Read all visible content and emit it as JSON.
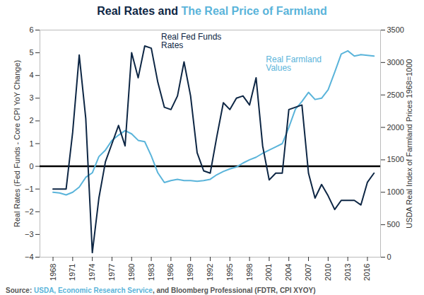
{
  "chart_data": {
    "type": "line",
    "title": [
      "Real Rates and",
      "The Real Price of Farmland"
    ],
    "source": [
      "Source: ",
      "USDA, Economic Research Service",
      ", and Bloomberg Professional (FDTR, CPI XYOY)"
    ],
    "y_label": "Real Rates (Fed Funds - Core CPI YoY Change)",
    "y2_label": "USDA Real Index of Farmland Prices 1968=1000",
    "x": [
      1968,
      1969,
      1970,
      1971,
      1972,
      1973,
      1974,
      1975,
      1976,
      1977,
      1978,
      1979,
      1980,
      1981,
      1982,
      1983,
      1984,
      1985,
      1986,
      1987,
      1988,
      1989,
      1990,
      1991,
      1992,
      1993,
      1994,
      1995,
      1996,
      1997,
      1998,
      1999,
      2000,
      2001,
      2002,
      2003,
      2004,
      2005,
      2006,
      2007,
      2008,
      2009,
      2010,
      2011,
      2012,
      2013,
      2014,
      2015,
      2016,
      2017
    ],
    "xlim": [
      1966,
      2018
    ],
    "xticks": [
      1968,
      1971,
      1974,
      1977,
      1980,
      1983,
      1986,
      1989,
      1992,
      1995,
      1998,
      2001,
      2004,
      2007,
      2010,
      2013,
      2016
    ],
    "ylim": [
      -4,
      6
    ],
    "yticks": [
      -4,
      -3,
      -2,
      -1,
      0,
      1,
      2,
      3,
      4,
      5,
      6
    ],
    "y2lim": [
      0,
      3500
    ],
    "y2ticks": [
      0,
      500,
      1000,
      1500,
      2000,
      2500,
      3000,
      3500
    ],
    "baseline": 0,
    "grid": false,
    "series": [
      {
        "name": "Real Fed Funds Rates",
        "color": "#0d2644",
        "axis": "y",
        "values": [
          -1.0,
          -1.0,
          -1.0,
          1.5,
          4.9,
          2.1,
          -3.8,
          -1.4,
          0.2,
          1.0,
          1.8,
          0.9,
          5.0,
          3.9,
          5.3,
          5.2,
          3.7,
          2.6,
          2.5,
          3.1,
          4.6,
          3.1,
          0.6,
          -0.2,
          -0.3,
          1.3,
          2.8,
          2.5,
          3.0,
          3.1,
          2.7,
          3.9,
          0.9,
          -0.6,
          -0.3,
          -0.3,
          2.5,
          2.6,
          2.7,
          -0.3,
          -1.4,
          -0.8,
          -1.3,
          -1.9,
          -1.5,
          -1.5,
          -1.5,
          -1.7,
          -0.7,
          -0.3
        ]
      },
      {
        "name": "Real Farmland Values",
        "color": "#5ab4da",
        "axis": "y2",
        "values": [
          1000,
          990,
          960,
          1000,
          1080,
          1230,
          1300,
          1550,
          1650,
          1800,
          1880,
          1950,
          1900,
          1800,
          1780,
          1560,
          1300,
          1150,
          1180,
          1200,
          1180,
          1180,
          1170,
          1180,
          1200,
          1270,
          1320,
          1360,
          1390,
          1450,
          1500,
          1540,
          1600,
          1650,
          1700,
          1750,
          2000,
          2280,
          2400,
          2540,
          2430,
          2450,
          2580,
          2850,
          3130,
          3180,
          3100,
          3120,
          3110,
          3100
        ]
      }
    ],
    "annotations": [
      {
        "text": "Real Fed Funds Rates",
        "x": 1984.5,
        "y": 5.5,
        "color": "#0d2644"
      },
      {
        "text": "Real Farmland Values",
        "x": 2000.5,
        "y": 4.5,
        "color": "#5ab4da"
      }
    ]
  }
}
